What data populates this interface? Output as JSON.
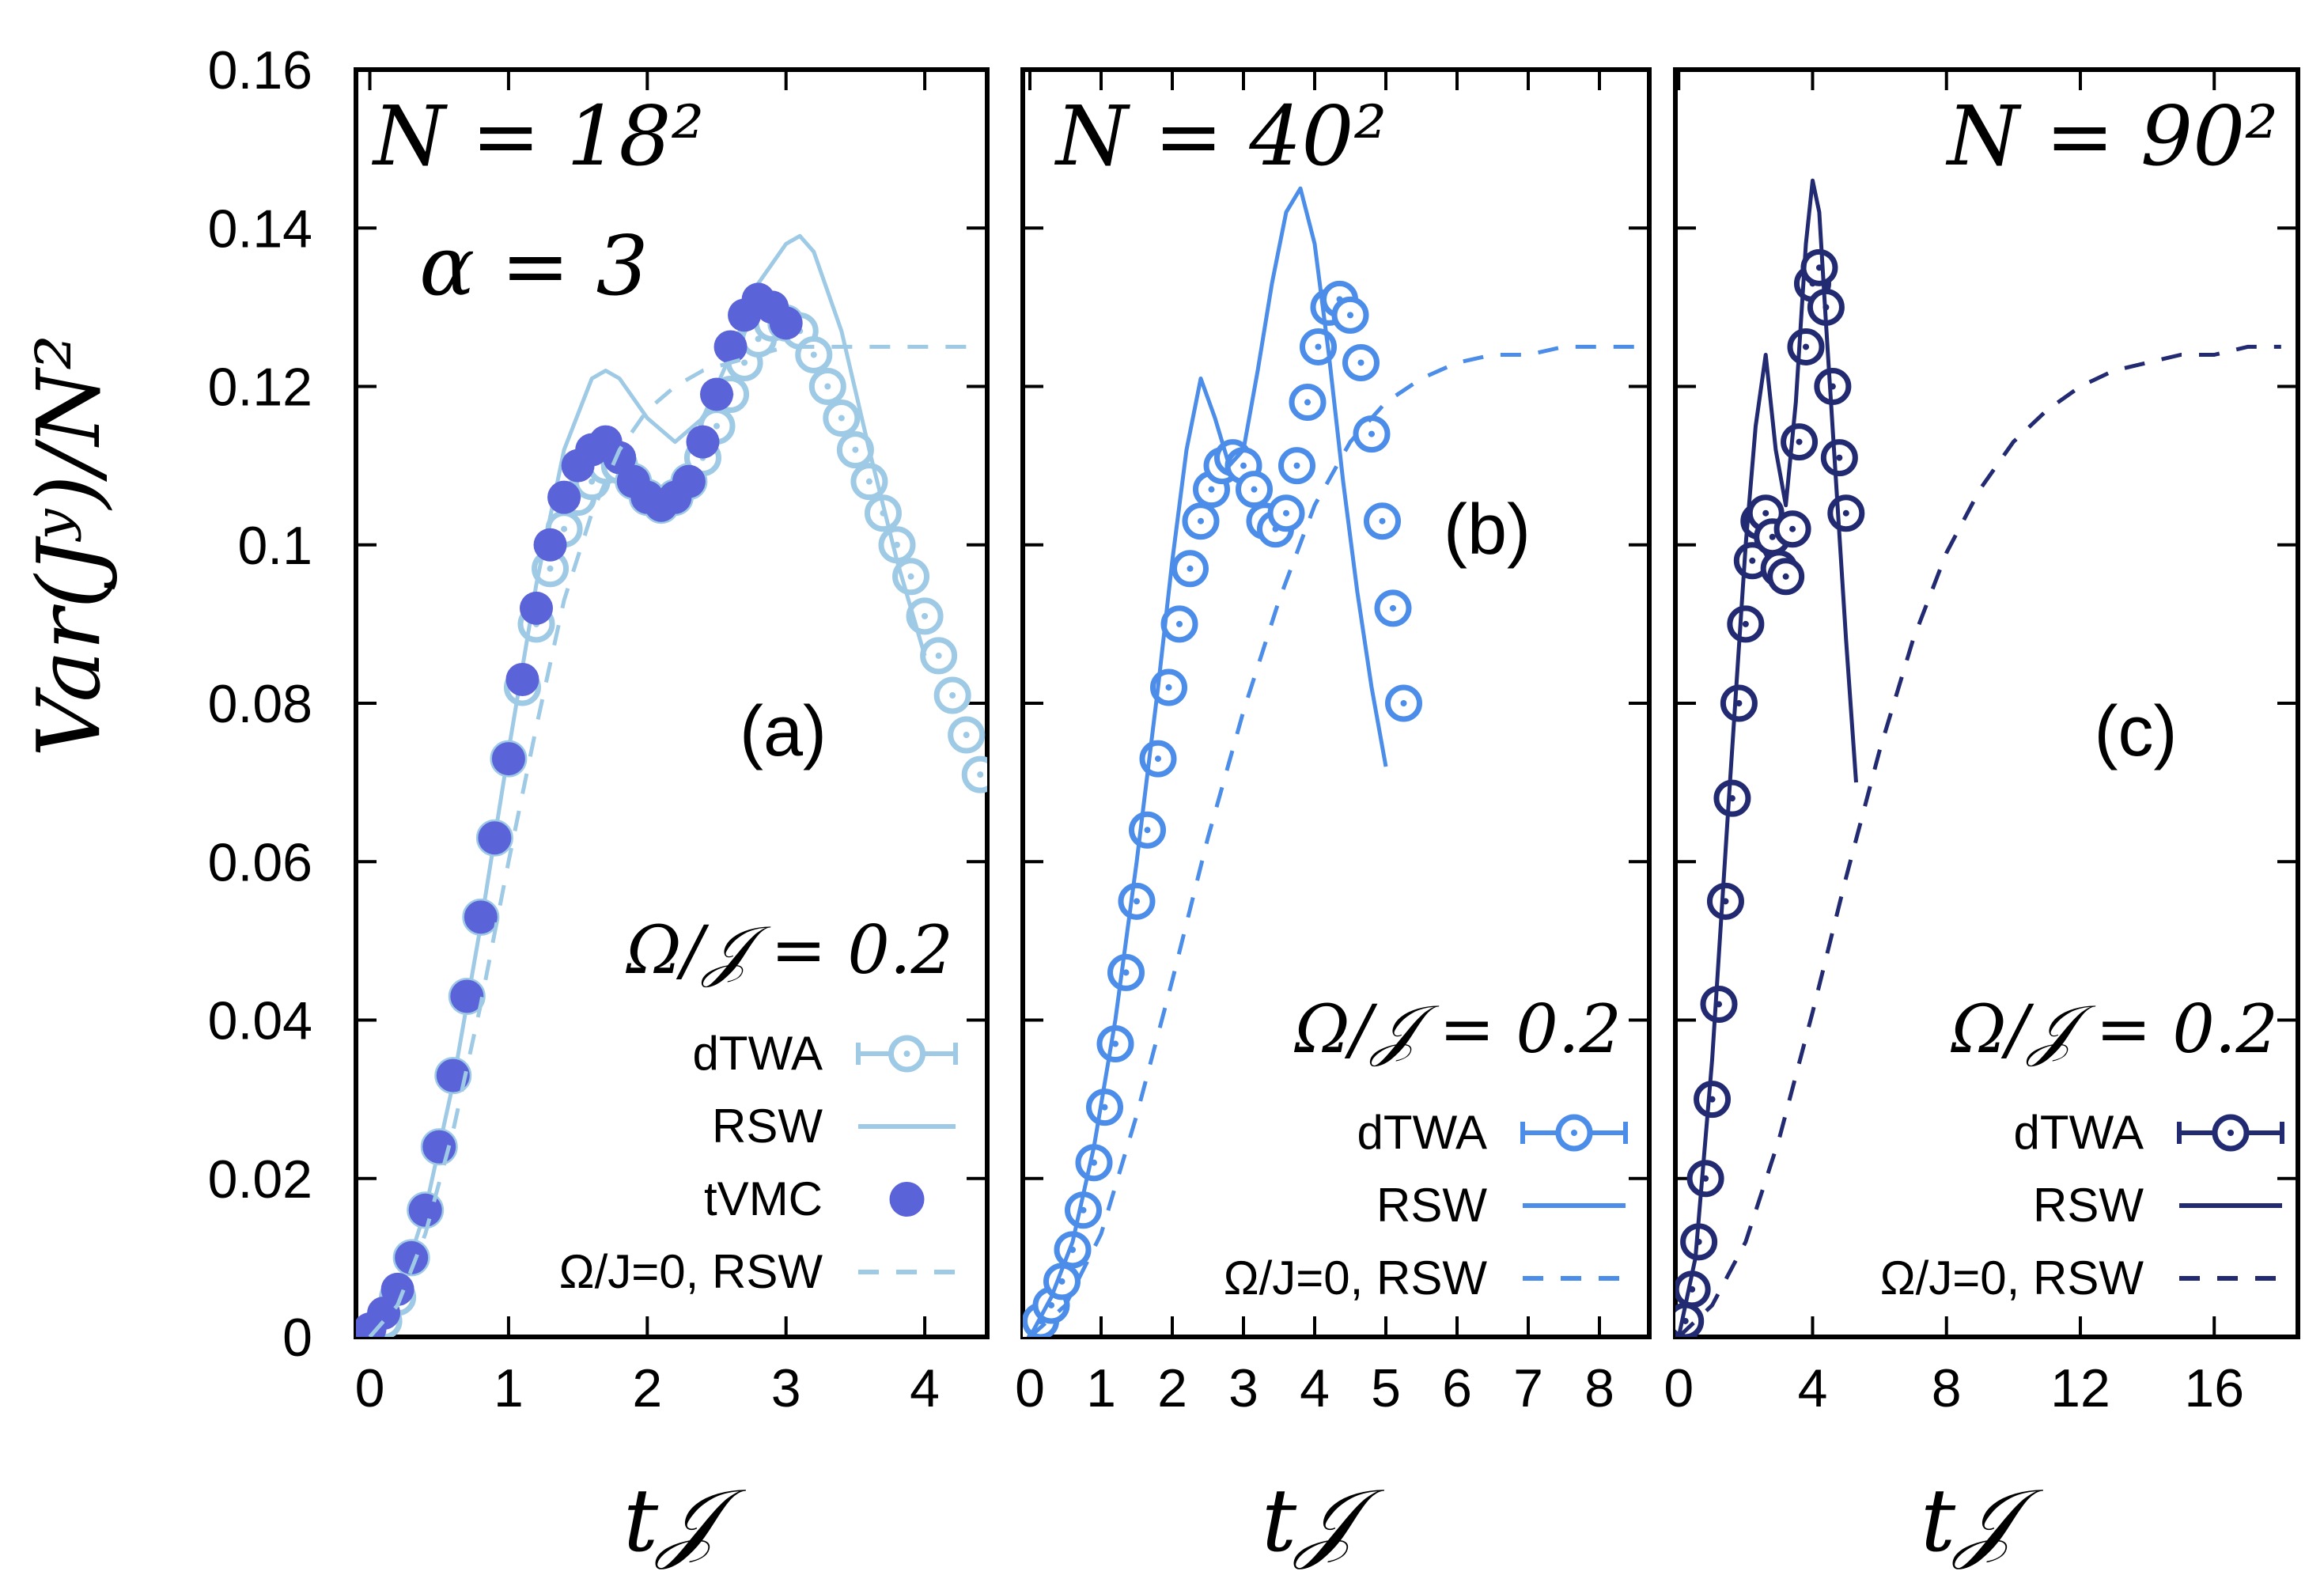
{
  "figure": {
    "ylabel": "Var(Jʸ)/N²",
    "xlabel": "t𝒥",
    "yticks": [
      "0",
      "0.02",
      "0.04",
      "0.06",
      "0.08",
      "0.1",
      "0.12",
      "0.14",
      "0.16"
    ]
  },
  "chart_data": [
    {
      "type": "line",
      "panel": "(a)",
      "annotation_N": "N = 18²",
      "annotation_alpha": "α = 3",
      "legend_title": "Ω/𝒥 = 0.2",
      "xlim": [
        -0.1,
        4.45
      ],
      "ylim": [
        0,
        0.16
      ],
      "xticks": [
        0,
        1,
        2,
        3,
        4
      ],
      "color": "#9ecae6",
      "color_dark": "#5b63d8",
      "series": [
        {
          "name": "dTWA",
          "style": "open-circles",
          "x": [
            0,
            0.1,
            0.2,
            0.3,
            0.4,
            0.5,
            0.6,
            0.7,
            0.8,
            0.9,
            1.0,
            1.1,
            1.2,
            1.3,
            1.4,
            1.5,
            1.6,
            1.7,
            1.8,
            1.9,
            2.0,
            2.1,
            2.2,
            2.3,
            2.4,
            2.5,
            2.6,
            2.7,
            2.8,
            2.9,
            3.0,
            3.1,
            3.2,
            3.3,
            3.4,
            3.5,
            3.6,
            3.7,
            3.8,
            3.9,
            4.0,
            4.1,
            4.2,
            4.3,
            4.4
          ],
          "y": [
            0.0,
            0.002,
            0.005,
            0.01,
            0.016,
            0.024,
            0.033,
            0.043,
            0.053,
            0.063,
            0.073,
            0.082,
            0.09,
            0.097,
            0.102,
            0.106,
            0.108,
            0.11,
            0.11,
            0.108,
            0.106,
            0.105,
            0.106,
            0.108,
            0.111,
            0.115,
            0.119,
            0.123,
            0.126,
            0.128,
            0.128,
            0.127,
            0.124,
            0.12,
            0.116,
            0.112,
            0.108,
            0.104,
            0.1,
            0.096,
            0.091,
            0.086,
            0.081,
            0.076,
            0.071
          ]
        },
        {
          "name": "RSW",
          "style": "solid",
          "x": [
            0,
            0.2,
            0.4,
            0.6,
            0.8,
            1.0,
            1.2,
            1.4,
            1.6,
            1.7,
            1.8,
            2.0,
            2.2,
            2.4,
            2.6,
            2.8,
            3.0,
            3.1,
            3.2,
            3.4,
            3.6,
            3.8,
            4.0
          ],
          "y": [
            0.0,
            0.005,
            0.016,
            0.032,
            0.052,
            0.074,
            0.095,
            0.112,
            0.121,
            0.122,
            0.121,
            0.116,
            0.113,
            0.116,
            0.124,
            0.133,
            0.138,
            0.139,
            0.137,
            0.127,
            0.112,
            0.098,
            0.086
          ]
        },
        {
          "name": "tVMC",
          "style": "filled-circles",
          "x": [
            0,
            0.1,
            0.2,
            0.3,
            0.4,
            0.5,
            0.6,
            0.7,
            0.8,
            0.9,
            1.0,
            1.1,
            1.2,
            1.3,
            1.4,
            1.5,
            1.6,
            1.7,
            1.8,
            1.9,
            2.0,
            2.1,
            2.2,
            2.3,
            2.4,
            2.5,
            2.6,
            2.7,
            2.8,
            2.9,
            3.0
          ],
          "y": [
            0.001,
            0.003,
            0.006,
            0.01,
            0.016,
            0.024,
            0.033,
            0.043,
            0.053,
            0.063,
            0.073,
            0.083,
            0.092,
            0.1,
            0.106,
            0.11,
            0.112,
            0.113,
            0.111,
            0.108,
            0.106,
            0.105,
            0.106,
            0.108,
            0.113,
            0.119,
            0.125,
            0.129,
            0.131,
            0.13,
            0.128
          ]
        },
        {
          "name": "Ω/J=0, RSW",
          "style": "dashed",
          "x": [
            0,
            0.2,
            0.4,
            0.6,
            0.8,
            1.0,
            1.2,
            1.4,
            1.6,
            1.8,
            2.0,
            2.2,
            2.4,
            2.6,
            2.8,
            3.0,
            3.2,
            3.4,
            3.6,
            3.8,
            4.0,
            4.2,
            4.4
          ],
          "y": [
            0.0,
            0.004,
            0.013,
            0.026,
            0.042,
            0.06,
            0.077,
            0.093,
            0.104,
            0.112,
            0.117,
            0.12,
            0.122,
            0.123,
            0.124,
            0.125,
            0.125,
            0.125,
            0.125,
            0.125,
            0.125,
            0.125,
            0.125
          ]
        }
      ]
    },
    {
      "type": "line",
      "panel": "(b)",
      "annotation_N": "N = 40²",
      "legend_title": "Ω/𝒥 = 0.2",
      "xlim": [
        -0.1,
        8.7
      ],
      "ylim": [
        0,
        0.16
      ],
      "xticks": [
        0,
        1,
        2,
        3,
        4,
        5,
        6,
        7,
        8
      ],
      "color": "#4b8de8",
      "series": [
        {
          "name": "dTWA",
          "style": "open-circles",
          "x": [
            0,
            0.15,
            0.3,
            0.45,
            0.6,
            0.75,
            0.9,
            1.05,
            1.2,
            1.35,
            1.5,
            1.65,
            1.8,
            1.95,
            2.1,
            2.25,
            2.4,
            2.55,
            2.7,
            2.85,
            3.0,
            3.15,
            3.3,
            3.45,
            3.6,
            3.75,
            3.9,
            4.05,
            4.2,
            4.35,
            4.5,
            4.65,
            4.8,
            4.95,
            5.1,
            5.25
          ],
          "y": [
            0.0,
            0.002,
            0.004,
            0.007,
            0.011,
            0.016,
            0.022,
            0.029,
            0.037,
            0.046,
            0.055,
            0.064,
            0.073,
            0.082,
            0.09,
            0.097,
            0.103,
            0.107,
            0.11,
            0.111,
            0.11,
            0.107,
            0.103,
            0.102,
            0.104,
            0.11,
            0.118,
            0.125,
            0.13,
            0.131,
            0.129,
            0.123,
            0.114,
            0.103,
            0.092,
            0.08
          ]
        },
        {
          "name": "RSW",
          "style": "solid",
          "x": [
            0,
            0.3,
            0.6,
            0.9,
            1.2,
            1.5,
            1.8,
            2.0,
            2.2,
            2.4,
            2.6,
            2.8,
            3.0,
            3.2,
            3.4,
            3.6,
            3.8,
            4.0,
            4.2,
            4.4,
            4.6,
            4.8,
            5.0
          ],
          "y": [
            0.0,
            0.005,
            0.012,
            0.024,
            0.04,
            0.06,
            0.082,
            0.098,
            0.112,
            0.121,
            0.116,
            0.11,
            0.112,
            0.122,
            0.133,
            0.142,
            0.145,
            0.138,
            0.124,
            0.108,
            0.094,
            0.082,
            0.072
          ]
        },
        {
          "name": "Ω/J=0, RSW",
          "style": "dashed",
          "x": [
            0,
            0.5,
            1.0,
            1.5,
            2.0,
            2.5,
            3.0,
            3.5,
            4.0,
            4.5,
            5.0,
            5.5,
            6.0,
            6.5,
            7.0,
            7.5,
            8.0,
            8.5
          ],
          "y": [
            0.0,
            0.004,
            0.013,
            0.028,
            0.045,
            0.063,
            0.079,
            0.093,
            0.105,
            0.113,
            0.118,
            0.121,
            0.123,
            0.124,
            0.124,
            0.125,
            0.125,
            0.125
          ]
        }
      ]
    },
    {
      "type": "line",
      "panel": "(c)",
      "annotation_N": "N = 90²",
      "legend_title": "Ω/𝒥 = 0.2",
      "xlim": [
        -0.1,
        18.5
      ],
      "ylim": [
        0,
        0.16
      ],
      "xticks": [
        0,
        4,
        8,
        12,
        16
      ],
      "color": "#222a72",
      "series": [
        {
          "name": "dTWA",
          "style": "open-circles",
          "x": [
            0,
            0.2,
            0.4,
            0.6,
            0.8,
            1.0,
            1.2,
            1.4,
            1.6,
            1.8,
            2.0,
            2.2,
            2.4,
            2.6,
            2.8,
            3.0,
            3.2,
            3.4,
            3.6,
            3.8,
            4.0,
            4.2,
            4.4,
            4.6,
            4.8,
            5.0
          ],
          "y": [
            0.0,
            0.002,
            0.006,
            0.012,
            0.02,
            0.03,
            0.042,
            0.055,
            0.068,
            0.08,
            0.09,
            0.098,
            0.103,
            0.104,
            0.101,
            0.097,
            0.096,
            0.102,
            0.113,
            0.125,
            0.133,
            0.135,
            0.13,
            0.12,
            0.111,
            0.104
          ]
        },
        {
          "name": "RSW",
          "style": "solid",
          "x": [
            0,
            0.5,
            1.0,
            1.5,
            2.0,
            2.3,
            2.6,
            2.9,
            3.2,
            3.5,
            3.8,
            4.0,
            4.2,
            4.4,
            4.7,
            5.0,
            5.3
          ],
          "y": [
            0.0,
            0.01,
            0.035,
            0.068,
            0.1,
            0.115,
            0.124,
            0.112,
            0.105,
            0.118,
            0.138,
            0.146,
            0.142,
            0.128,
            0.108,
            0.088,
            0.07
          ]
        },
        {
          "name": "Ω/J=0, RSW",
          "style": "dashed",
          "x": [
            0,
            1,
            2,
            3,
            4,
            5,
            6,
            7,
            8,
            9,
            10,
            11,
            12,
            13,
            14,
            15,
            16,
            17,
            18
          ],
          "y": [
            0.0,
            0.004,
            0.012,
            0.025,
            0.041,
            0.058,
            0.074,
            0.088,
            0.099,
            0.107,
            0.113,
            0.117,
            0.12,
            0.122,
            0.123,
            0.124,
            0.124,
            0.125,
            0.125
          ]
        }
      ]
    }
  ]
}
